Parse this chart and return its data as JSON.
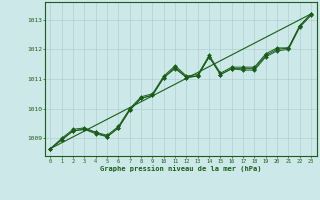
{
  "title": "Graphe pression niveau de la mer (hPa)",
  "bg_color": "#cde8e8",
  "grid_color": "#b0d0d0",
  "line_color": "#1a5c1a",
  "xlim": [
    -0.5,
    23.5
  ],
  "ylim": [
    1008.4,
    1013.6
  ],
  "xticks": [
    0,
    1,
    2,
    3,
    4,
    5,
    6,
    7,
    8,
    9,
    10,
    11,
    12,
    13,
    14,
    15,
    16,
    17,
    18,
    19,
    20,
    21,
    22,
    23
  ],
  "yticks": [
    1009,
    1010,
    1011,
    1012,
    1013
  ],
  "straight_line": [
    1008.65,
    1013.2
  ],
  "series1": [
    1008.65,
    1008.95,
    1009.25,
    1009.3,
    1009.2,
    1009.05,
    1009.35,
    1009.95,
    1010.35,
    1010.45,
    1011.05,
    1011.4,
    1011.05,
    1011.1,
    1011.75,
    1011.15,
    1011.35,
    1011.35,
    1011.35,
    1011.8,
    1012.0,
    1012.05,
    1012.8,
    1013.2
  ],
  "series2": [
    1008.65,
    1008.95,
    1009.25,
    1009.3,
    1009.15,
    1009.05,
    1009.35,
    1009.95,
    1010.35,
    1010.45,
    1011.05,
    1011.35,
    1011.05,
    1011.1,
    1011.75,
    1011.15,
    1011.35,
    1011.3,
    1011.3,
    1011.75,
    1011.95,
    1012.0,
    1012.75,
    1013.15
  ],
  "series3": [
    1008.65,
    1009.0,
    1009.3,
    1009.35,
    1009.2,
    1009.1,
    1009.4,
    1010.0,
    1010.4,
    1010.5,
    1011.1,
    1011.45,
    1011.1,
    1011.15,
    1011.8,
    1011.2,
    1011.4,
    1011.4,
    1011.4,
    1011.85,
    1012.05,
    1012.05,
    1012.8,
    1013.2
  ]
}
